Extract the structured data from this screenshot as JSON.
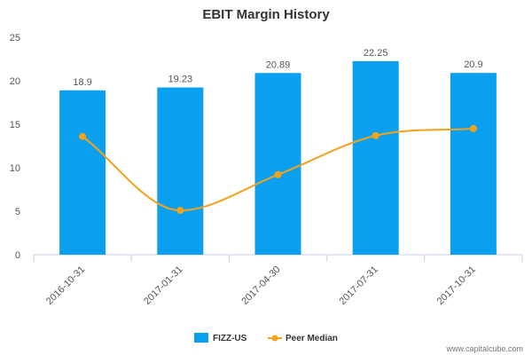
{
  "chart_data": {
    "type": "bar",
    "title": "EBIT Margin History",
    "categories": [
      "2016-10-31",
      "2017-01-31",
      "2017-04-30",
      "2017-07-31",
      "2017-10-31"
    ],
    "series": [
      {
        "name": "FIZZ-US",
        "type": "bar",
        "color": "#0aa0ef",
        "values": [
          18.9,
          19.23,
          20.89,
          22.25,
          20.9
        ],
        "labels": [
          "18.9",
          "19.23",
          "20.89",
          "22.25",
          "20.9"
        ]
      },
      {
        "name": "Peer Median",
        "type": "line",
        "color": "#f5a21b",
        "values": [
          13.6,
          5.1,
          9.2,
          13.7,
          14.5
        ]
      }
    ],
    "ylim": [
      0,
      25
    ],
    "yticks": [
      0,
      5,
      10,
      15,
      20,
      25
    ],
    "xlabel": "",
    "ylabel": "",
    "grid": false,
    "legend": "bottom-center"
  },
  "watermark": "www.capitalcube.com"
}
